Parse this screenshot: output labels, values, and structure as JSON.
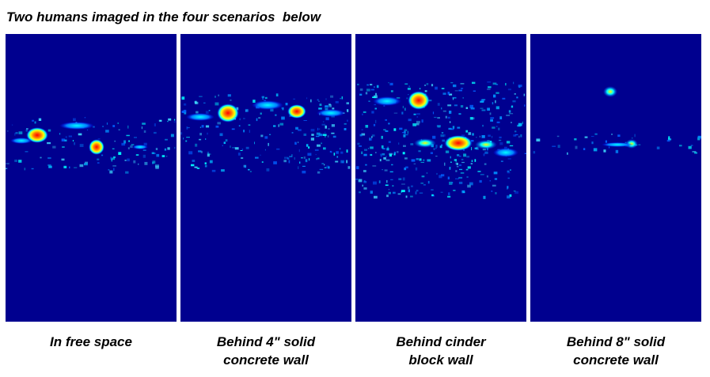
{
  "title": "Two humans imaged in the four scenarios  below",
  "colors": {
    "background": "#00008f",
    "hot": "#ff0000",
    "warm": "#ffff00",
    "mid": "#00ffff",
    "low": "#0080ff"
  },
  "panels": [
    {
      "caption_line1": "In free space",
      "caption_line2": ""
    },
    {
      "caption_line1": "Behind 4\" solid",
      "caption_line2": "concrete wall"
    },
    {
      "caption_line1": "Behind cinder",
      "caption_line2": "block wall"
    },
    {
      "caption_line1": "Behind 8\" solid",
      "caption_line2": "concrete wall"
    }
  ]
}
